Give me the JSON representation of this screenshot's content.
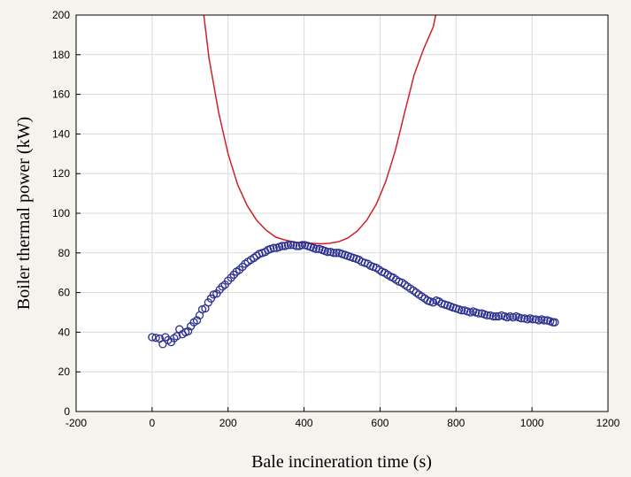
{
  "chart_data": {
    "type": "scatter",
    "title": "",
    "xlabel": "Bale incineration time (s)",
    "ylabel": "Boiler thermal power (kW)",
    "xlim": [
      -200,
      1200
    ],
    "ylim": [
      0,
      200
    ],
    "x_ticks": [
      -200,
      0,
      200,
      400,
      600,
      800,
      1000,
      1200
    ],
    "y_ticks": [
      0,
      20,
      40,
      60,
      80,
      100,
      120,
      140,
      160,
      180,
      200
    ],
    "x_tick_labels": [
      "-200",
      "0",
      "200",
      "400",
      "600",
      "800",
      "1000",
      "1200"
    ],
    "y_tick_labels": [
      "0",
      "20",
      "40",
      "60",
      "80",
      "100",
      "120",
      "140",
      "160",
      "180",
      "200"
    ],
    "grid": true,
    "colors": {
      "points": "#2b2f8f",
      "curve": "#d0202a",
      "grid": "#d9d9d9",
      "background": "#f6f3ee",
      "plot": "#ffffff"
    },
    "series": [
      {
        "type": "scatter",
        "marker": "open-circle",
        "x": [
          0,
          10,
          20,
          28,
          35,
          42,
          50,
          58,
          65,
          72,
          80,
          88,
          95,
          102,
          110,
          118,
          125,
          132,
          140,
          148,
          155,
          162,
          170,
          178,
          185,
          192,
          200,
          208,
          215,
          222,
          230,
          238,
          245,
          252,
          260,
          268,
          275,
          282,
          290,
          298,
          305,
          312,
          320,
          328,
          335,
          342,
          350,
          358,
          365,
          372,
          380,
          388,
          395,
          402,
          410,
          418,
          425,
          432,
          440,
          448,
          455,
          462,
          470,
          478,
          485,
          492,
          500,
          508,
          515,
          522,
          530,
          538,
          545,
          552,
          560,
          568,
          575,
          582,
          590,
          598,
          605,
          612,
          620,
          628,
          635,
          642,
          650,
          658,
          665,
          672,
          680,
          688,
          695,
          702,
          710,
          718,
          725,
          732,
          740,
          748,
          755,
          762,
          770,
          778,
          785,
          792,
          800,
          808,
          815,
          822,
          830,
          838,
          845,
          852,
          860,
          868,
          875,
          882,
          890,
          898,
          905,
          912,
          920,
          928,
          935,
          942,
          950,
          958,
          965,
          972,
          980,
          988,
          995,
          1002,
          1010,
          1018,
          1025,
          1032,
          1040,
          1048,
          1055,
          1060
        ],
        "y": [
          37.5,
          37.2,
          36.8,
          34.0,
          37.5,
          36.0,
          35.0,
          37.0,
          38.0,
          41.5,
          39.0,
          40.0,
          40.5,
          43.0,
          45.0,
          46.0,
          48.5,
          51.5,
          52.0,
          55.0,
          57.0,
          59.0,
          59.5,
          61.5,
          63.0,
          64.0,
          66.0,
          67.5,
          69.0,
          70.5,
          71.5,
          73.0,
          74.5,
          75.5,
          76.5,
          77.5,
          78.5,
          79.5,
          80.0,
          80.5,
          81.5,
          82.0,
          82.5,
          82.5,
          83.0,
          83.5,
          83.5,
          84.0,
          84.0,
          84.0,
          83.5,
          83.5,
          84.0,
          84.0,
          83.5,
          83.0,
          82.5,
          82.0,
          82.0,
          81.5,
          81.0,
          80.5,
          80.5,
          80.0,
          80.0,
          80.0,
          79.5,
          79.0,
          78.5,
          78.0,
          77.5,
          77.0,
          76.5,
          75.5,
          75.0,
          74.5,
          73.5,
          73.0,
          72.5,
          71.5,
          70.5,
          70.0,
          69.0,
          68.0,
          67.5,
          66.5,
          65.5,
          65.0,
          64.0,
          63.0,
          62.0,
          61.0,
          60.0,
          59.0,
          58.0,
          57.0,
          56.0,
          55.5,
          55.0,
          56.0,
          55.5,
          54.5,
          54.0,
          53.5,
          53.0,
          52.5,
          52.0,
          51.5,
          51.0,
          51.0,
          50.5,
          50.0,
          50.5,
          50.0,
          49.5,
          49.5,
          49.0,
          48.5,
          48.5,
          48.0,
          48.0,
          48.0,
          48.5,
          48.0,
          47.5,
          48.0,
          47.5,
          48.0,
          47.5,
          47.0,
          47.0,
          46.5,
          47.0,
          46.5,
          46.5,
          46.0,
          46.5,
          46.0,
          46.0,
          45.5,
          45.0,
          45.0
        ]
      },
      {
        "type": "line",
        "min_x": 445,
        "min_y": 84.6,
        "x": [
          133,
          150,
          175,
          200,
          225,
          250,
          275,
          300,
          325,
          350,
          375,
          400,
          425,
          445,
          465,
          490,
          515,
          540,
          565,
          590,
          615,
          640,
          665,
          690,
          715,
          740,
          752
        ],
        "y": [
          205,
          178,
          151,
          130,
          114.5,
          104,
          96.5,
          91.5,
          88,
          86.5,
          85.5,
          85,
          84.8,
          84.6,
          84.8,
          85.6,
          87.5,
          91,
          96.5,
          104.5,
          116,
          131.5,
          151,
          170,
          183,
          194,
          205
        ]
      }
    ]
  }
}
